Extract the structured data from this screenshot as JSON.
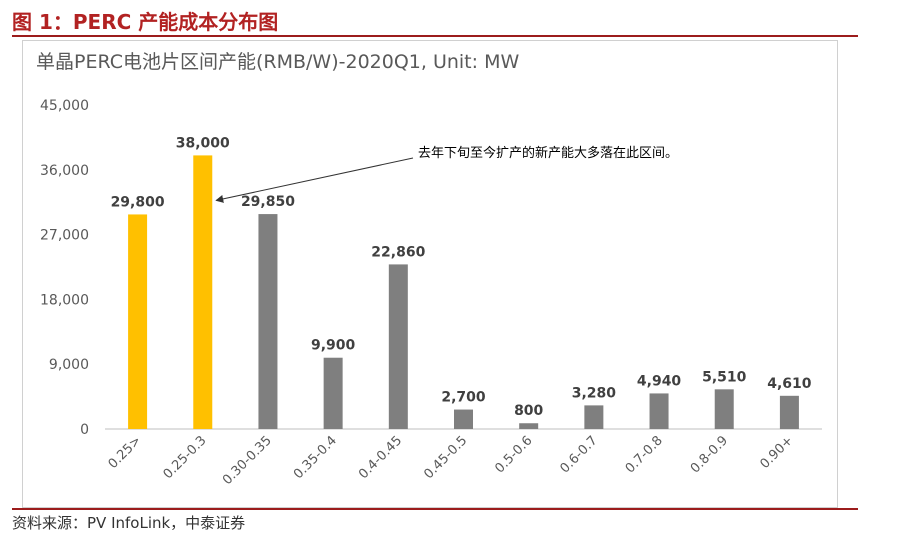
{
  "figure": {
    "title": "图 1：PERC 产能成本分布图",
    "source": "资料来源：PV InfoLink，中泰证券"
  },
  "chart_data": {
    "type": "bar",
    "title": "单晶PERC电池片区间产能(RMB/W)-2020Q1, Unit: MW",
    "categories": [
      "0.25>",
      "0.25-0.3",
      "0.30-0.35",
      "0.35-0.4",
      "0.4-0.45",
      "0.45-0.5",
      "0.5-0.6",
      "0.6-0.7",
      "0.7-0.8",
      "0.8-0.9",
      "0.90+"
    ],
    "values": [
      29800,
      38000,
      29850,
      9900,
      22860,
      2700,
      800,
      3280,
      4940,
      5510,
      4610
    ],
    "data_labels": [
      "29,800",
      "38,000",
      "29,850",
      "9,900",
      "22,860",
      "2,700",
      "800",
      "3,280",
      "4,940",
      "5,510",
      "4,610"
    ],
    "yticks": [
      "0",
      "9,000",
      "18,000",
      "27,000",
      "36,000",
      "45,000"
    ],
    "ylim": [
      0,
      45000
    ],
    "bar_colors": [
      "#ffc000",
      "#ffc000",
      "#7f7f7f",
      "#7f7f7f",
      "#7f7f7f",
      "#7f7f7f",
      "#7f7f7f",
      "#7f7f7f",
      "#7f7f7f",
      "#7f7f7f",
      "#7f7f7f"
    ],
    "grid": false,
    "annotation": {
      "text": "去年下旬至今扩产的新产能大多落在此区间。",
      "points_to": "0.25-0.3"
    }
  }
}
